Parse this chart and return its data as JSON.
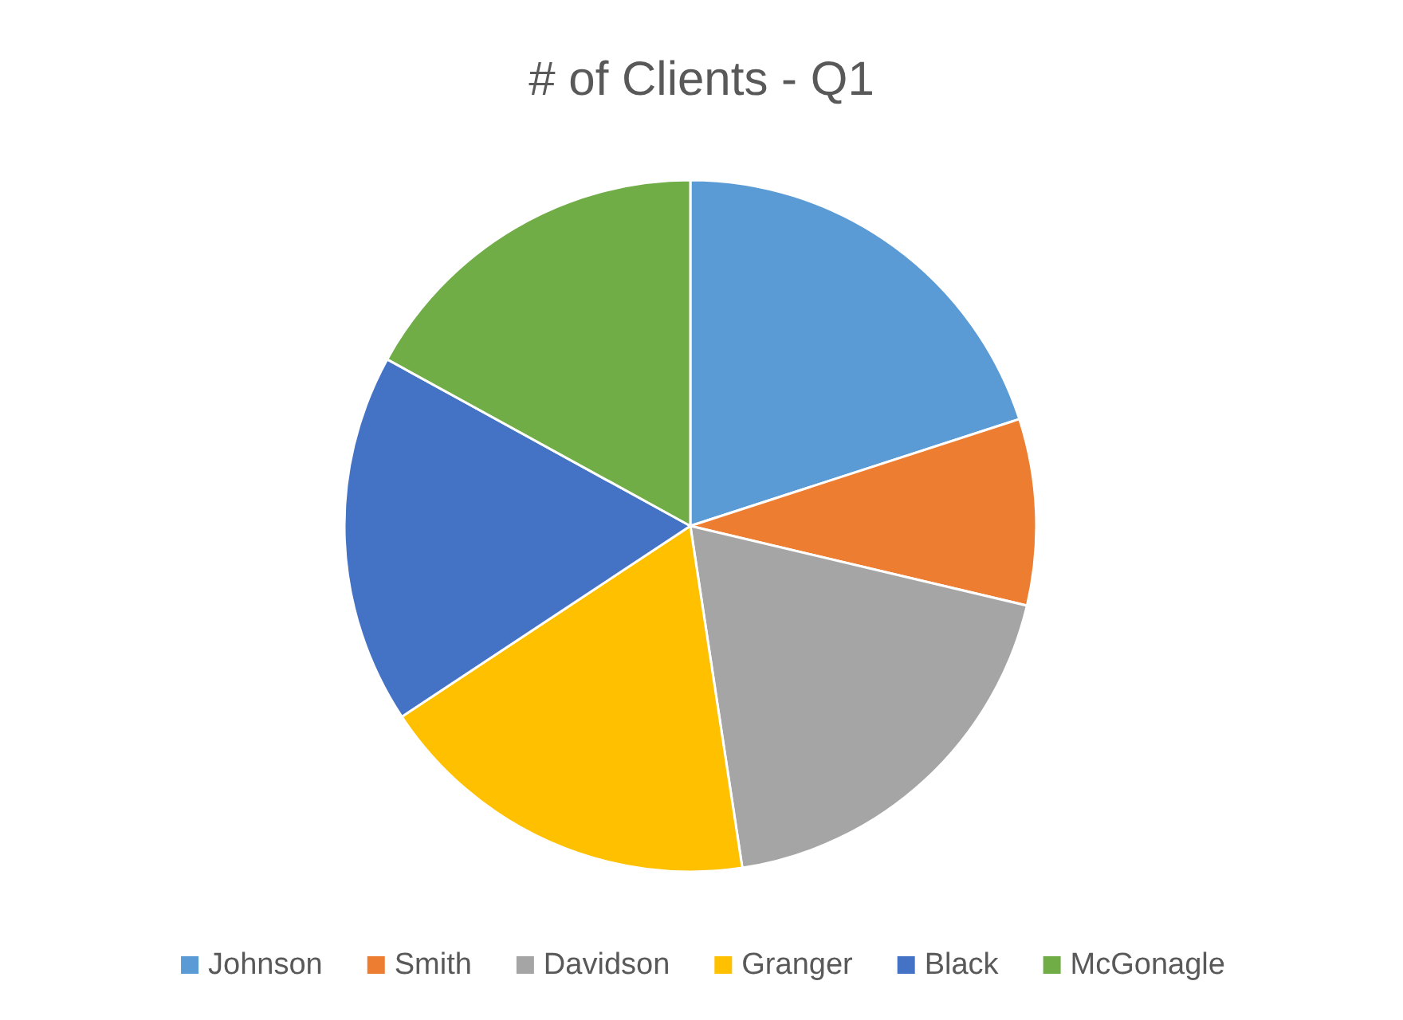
{
  "chart_data": {
    "type": "pie",
    "title": "# of Clients - Q1",
    "categories": [
      "Johnson",
      "Smith",
      "Davidson",
      "Granger",
      "Black",
      "McGonagle"
    ],
    "values": [
      20,
      8.7,
      18.9,
      18.1,
      17.3,
      17
    ],
    "colors": [
      "#5b9bd5",
      "#ed7d31",
      "#a5a5a5",
      "#ffc000",
      "#4472c4",
      "#70ad47"
    ],
    "legend": "bottom"
  }
}
